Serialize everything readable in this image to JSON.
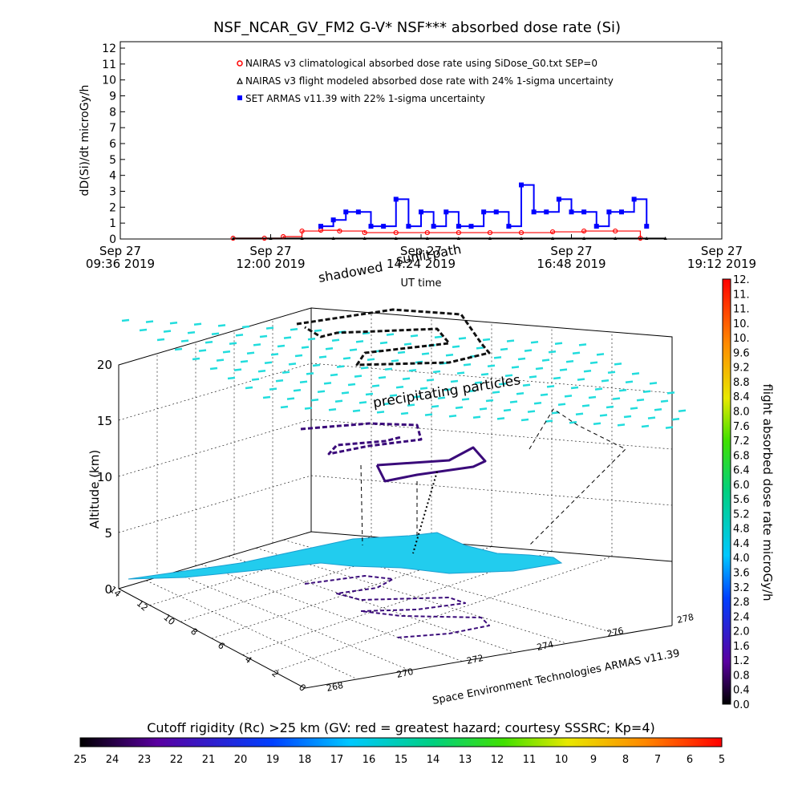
{
  "chart_data": [
    {
      "type": "scatter",
      "title": "NSF_NCAR_GV_FM2 G-V* NSF*** absorbed dose rate (Si)",
      "xlabel": "UT time",
      "ylabel": "dD(Si)/dt microGy/h",
      "ylim": [
        0,
        12
      ],
      "yticks": [
        "0",
        "1",
        "2",
        "3",
        "4",
        "5",
        "6",
        "7",
        "8",
        "9",
        "10",
        "11",
        "12"
      ],
      "xticks": [
        {
          "top": "Sep 27",
          "bottom": "09:36 2019"
        },
        {
          "top": "Sep 27",
          "bottom": "12:00 2019"
        },
        {
          "top": "Sep 27",
          "bottom": "14:24 2019"
        },
        {
          "top": "Sep 27",
          "bottom": "16:48 2019"
        },
        {
          "top": "Sep 27",
          "bottom": "19:12 2019"
        }
      ],
      "legend_position": "top",
      "overlay_labels": [
        "shadowed",
        "sunlit",
        "path"
      ],
      "series": [
        {
          "name": "NAIRAS v3 climatological absorbed dose rate using SiDose_G0.txt SEP=0",
          "color": "#ff0000",
          "marker": "circle",
          "x": [
            11.4,
            11.9,
            12.2,
            12.5,
            12.8,
            13.1,
            13.5,
            14.0,
            14.5,
            15.0,
            15.5,
            16.0,
            16.5,
            17.0,
            17.5,
            17.9
          ],
          "y": [
            0.05,
            0.05,
            0.15,
            0.5,
            0.55,
            0.5,
            0.4,
            0.4,
            0.4,
            0.4,
            0.4,
            0.4,
            0.45,
            0.5,
            0.5,
            0.05
          ]
        },
        {
          "name": "NAIRAS v3 flight modeled absorbed dose rate with 24% 1-sigma uncertainty",
          "color": "#000000",
          "marker": "triangle",
          "x": [
            11.4,
            12.0,
            12.5,
            13.0,
            13.5,
            14.0,
            14.5,
            15.0,
            15.5,
            16.0,
            16.5,
            17.0,
            17.5,
            18.0,
            18.3
          ],
          "y": [
            0.05,
            0.05,
            0.05,
            0.05,
            0.05,
            0.05,
            0.05,
            0.05,
            0.05,
            0.05,
            0.05,
            0.05,
            0.05,
            0.05,
            0.05
          ]
        },
        {
          "name": "SET ARMAS v11.39 with 22% 1-sigma uncertainty",
          "color": "#0000ff",
          "marker": "square",
          "x": [
            12.8,
            13.0,
            13.2,
            13.4,
            13.6,
            13.8,
            14.0,
            14.2,
            14.4,
            14.6,
            14.8,
            15.0,
            15.2,
            15.4,
            15.6,
            15.8,
            16.0,
            16.2,
            16.4,
            16.6,
            16.8,
            17.0,
            17.2,
            17.4,
            17.6,
            17.8,
            18.0
          ],
          "y": [
            0.8,
            1.2,
            1.7,
            1.7,
            0.8,
            0.8,
            2.5,
            0.8,
            1.7,
            0.8,
            1.7,
            0.8,
            0.8,
            1.7,
            1.7,
            0.8,
            3.4,
            1.7,
            1.7,
            2.5,
            1.7,
            1.7,
            0.8,
            1.7,
            1.7,
            2.5,
            0.8
          ]
        }
      ]
    },
    {
      "type": "scatter",
      "subtype": "3d-flight-track",
      "zlabel": "Altitude (km)",
      "zticks": [
        "0",
        "5",
        "10",
        "15",
        "20"
      ],
      "xticks": [
        "268",
        "270",
        "272",
        "274",
        "276",
        "278"
      ],
      "yticks": [
        "0",
        "2",
        "4",
        "6",
        "8",
        "10",
        "12",
        "14"
      ],
      "annotations": [
        "precipitating particles"
      ],
      "credit": "Space Environment Technologies ARMAS v11.39",
      "colorbar": {
        "label": "flight absorbed dose rate microGy/h",
        "ticks": [
          "0.0",
          "0.4",
          "0.8",
          "1.2",
          "1.6",
          "2.0",
          "2.4",
          "2.8",
          "3.2",
          "3.6",
          "4.0",
          "4.4",
          "4.8",
          "5.2",
          "5.6",
          "6.0",
          "6.4",
          "6.8",
          "7.2",
          "7.6",
          "8.0",
          "8.4",
          "8.8",
          "9.2",
          "9.6",
          "10.",
          "10.",
          "11.",
          "11.",
          "12."
        ]
      },
      "bottom_colorbar": {
        "label": "Cutoff rigidity (Rc) >25 km (GV: red = greatest hazard; courtesy SSSRC; Kp=4)",
        "ticks": [
          "25",
          "24",
          "23",
          "22",
          "21",
          "20",
          "19",
          "18",
          "17",
          "16",
          "15",
          "14",
          "13",
          "12",
          "11",
          "10",
          "9",
          "8",
          "7",
          "6",
          "5"
        ]
      }
    }
  ]
}
